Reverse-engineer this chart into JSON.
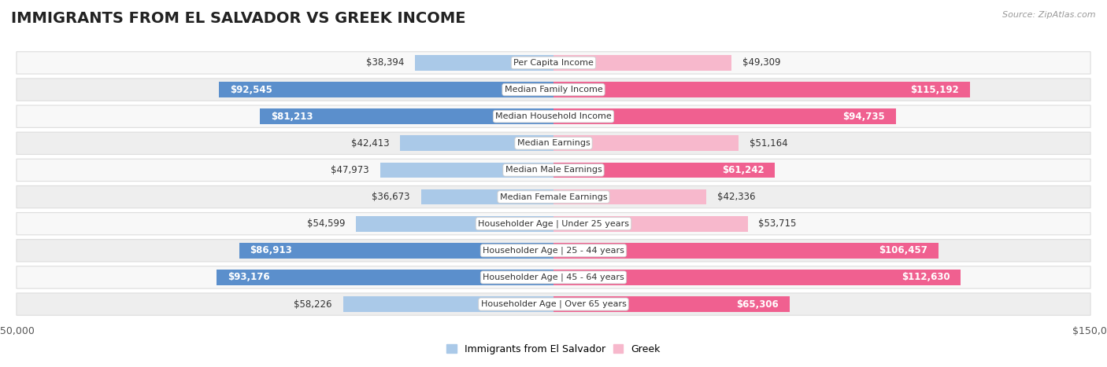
{
  "title": "IMMIGRANTS FROM EL SALVADOR VS GREEK INCOME",
  "source": "Source: ZipAtlas.com",
  "categories": [
    "Per Capita Income",
    "Median Family Income",
    "Median Household Income",
    "Median Earnings",
    "Median Male Earnings",
    "Median Female Earnings",
    "Householder Age | Under 25 years",
    "Householder Age | 25 - 44 years",
    "Householder Age | 45 - 64 years",
    "Householder Age | Over 65 years"
  ],
  "salvador_values": [
    38394,
    92545,
    81213,
    42413,
    47973,
    36673,
    54599,
    86913,
    93176,
    58226
  ],
  "greek_values": [
    49309,
    115192,
    94735,
    51164,
    61242,
    42336,
    53715,
    106457,
    112630,
    65306
  ],
  "salvador_labels": [
    "$38,394",
    "$92,545",
    "$81,213",
    "$42,413",
    "$47,973",
    "$36,673",
    "$54,599",
    "$86,913",
    "$93,176",
    "$58,226"
  ],
  "greek_labels": [
    "$49,309",
    "$115,192",
    "$94,735",
    "$51,164",
    "$61,242",
    "$42,336",
    "$53,715",
    "$106,457",
    "$112,630",
    "$65,306"
  ],
  "salvador_color_light": "#aac9e8",
  "salvador_color_dark": "#5b8fcc",
  "greek_color_light": "#f7b8cc",
  "greek_color_dark": "#f06090",
  "max_value": 150000,
  "background_color": "#ffffff",
  "row_bg_odd": "#eeeeee",
  "row_bg_even": "#f8f8f8",
  "title_fontsize": 14,
  "axis_label_fontsize": 9,
  "bar_label_fontsize": 8.5,
  "cat_label_fontsize": 8,
  "legend_label_salvador": "Immigrants from El Salvador",
  "legend_label_greek": "Greek",
  "sal_inside_threshold": 60000,
  "grk_inside_threshold": 60000
}
